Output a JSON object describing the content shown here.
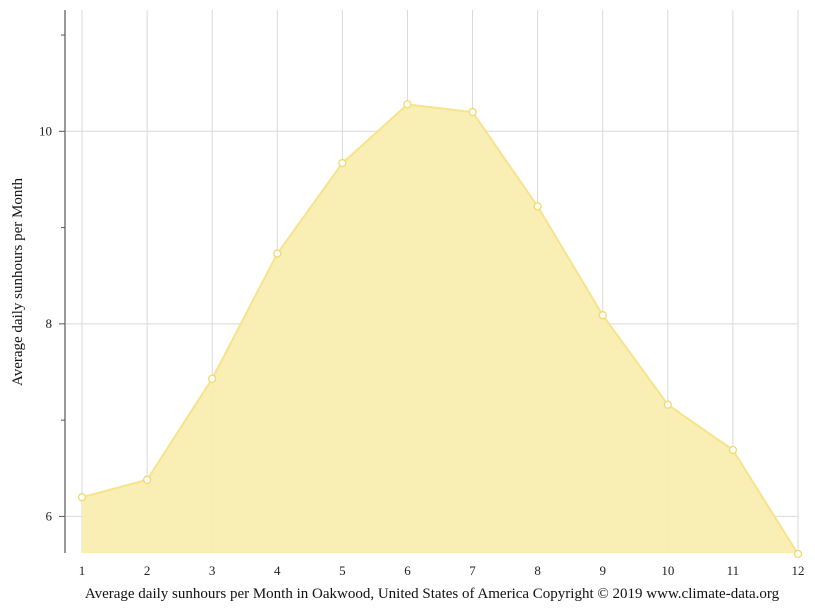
{
  "chart_data": {
    "type": "area",
    "ylabel": "Average daily sunhours per Month",
    "caption": "Average daily sunhours per Month in Oakwood, United States of America Copyright © 2019 www.climate-data.org",
    "x": [
      1,
      2,
      3,
      4,
      5,
      6,
      7,
      8,
      9,
      10,
      11,
      12
    ],
    "x_tick_labels": [
      "1",
      "2",
      "3",
      "4",
      "5",
      "6",
      "7",
      "8",
      "9",
      "10",
      "11",
      "12"
    ],
    "series": [
      {
        "values": [
          6.2,
          6.38,
          7.43,
          8.73,
          9.67,
          10.28,
          10.2,
          9.22,
          8.09,
          7.16,
          6.69,
          5.61
        ]
      }
    ],
    "ylim": [
      5.62,
      11.26
    ],
    "y_major_ticks": [
      6,
      8,
      10
    ],
    "y_tick_labels": [
      "6",
      "8",
      "10"
    ],
    "y_minor_ticks": [
      7,
      9,
      11
    ],
    "grid": true,
    "colors": {
      "fill": "#f9eeb0",
      "line": "#f7e38c",
      "point_fill": "#ffffff",
      "point_stroke": "#f2d96a",
      "grid": "#d9d9d9"
    }
  }
}
